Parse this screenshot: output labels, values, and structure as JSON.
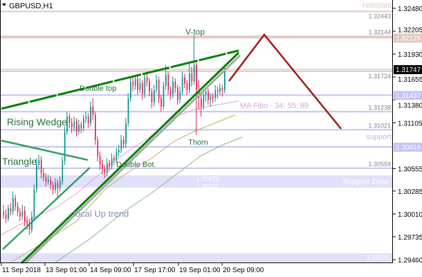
{
  "header": {
    "symbol_label": "GBPUSD,H1",
    "menu_icon": "triangle-down-icon"
  },
  "chart_data": {
    "type": "candlestick",
    "title": "GBPUSD,H1",
    "ylim": [
      1.2946,
      1.3248
    ],
    "y_ticks": [
      "1.32480",
      "1.32205",
      "1.31930",
      "1.31655",
      "1.31380",
      "1.31105",
      "1.30555",
      "1.30285",
      "1.30010",
      "1.29735",
      "1.29460"
    ],
    "x_ticks": [
      "11 Sep 2018",
      "13 Sep 01:00",
      "14 Sep 09:00",
      "17 Sep 17:00",
      "19 Sep 01:00",
      "20 Sep 09:00"
    ],
    "colors": {
      "bull": "#008c8c",
      "bear": "#e8194a",
      "level_resist": "#e0c8c0",
      "level_support": "#c4c4f4",
      "zone": "#e0e0f8",
      "trend": "#008000",
      "projection": "#a01818"
    },
    "current_price": "1.31747",
    "candles": [
      [
        1.3004,
        1.3012,
        1.2995,
        1.3
      ],
      [
        1.3,
        1.3006,
        1.299,
        1.2995
      ],
      [
        1.2995,
        1.3012,
        1.2992,
        1.3008
      ],
      [
        1.3008,
        1.3014,
        1.2999,
        1.3004
      ],
      [
        1.3004,
        1.3028,
        1.3,
        1.302
      ],
      [
        1.302,
        1.3024,
        1.3005,
        1.301
      ],
      [
        1.301,
        1.3015,
        1.2998,
        1.3003
      ],
      [
        1.3003,
        1.3008,
        1.2992,
        1.2998
      ],
      [
        1.2998,
        1.3012,
        1.2994,
        1.3005
      ],
      [
        1.3005,
        1.301,
        1.2986,
        1.2992
      ],
      [
        1.2992,
        1.2998,
        1.2982,
        1.2988
      ],
      [
        1.2988,
        1.2994,
        1.2976,
        1.2982
      ],
      [
        1.2982,
        1.3004,
        1.2978,
        1.2998
      ],
      [
        1.2998,
        1.3036,
        1.2994,
        1.303
      ],
      [
        1.303,
        1.3068,
        1.3026,
        1.306
      ],
      [
        1.306,
        1.3072,
        1.3054,
        1.3066
      ],
      [
        1.3066,
        1.307,
        1.3044,
        1.305
      ],
      [
        1.305,
        1.3056,
        1.304,
        1.3045
      ],
      [
        1.3045,
        1.305,
        1.3034,
        1.304
      ],
      [
        1.304,
        1.3048,
        1.3036,
        1.3042
      ],
      [
        1.3042,
        1.3046,
        1.303,
        1.3036
      ],
      [
        1.3036,
        1.304,
        1.3024,
        1.303
      ],
      [
        1.303,
        1.3044,
        1.3026,
        1.3038
      ],
      [
        1.3038,
        1.3042,
        1.302,
        1.3032
      ],
      [
        1.3032,
        1.3046,
        1.3028,
        1.304
      ],
      [
        1.304,
        1.307,
        1.3036,
        1.3065
      ],
      [
        1.3065,
        1.3106,
        1.306,
        1.31
      ],
      [
        1.31,
        1.3124,
        1.3096,
        1.3118
      ],
      [
        1.3118,
        1.3122,
        1.3104,
        1.311
      ],
      [
        1.311,
        1.3116,
        1.3098,
        1.3105
      ],
      [
        1.3105,
        1.3118,
        1.31,
        1.3112
      ],
      [
        1.3112,
        1.3116,
        1.3094,
        1.31
      ],
      [
        1.31,
        1.3114,
        1.3096,
        1.3108
      ],
      [
        1.3108,
        1.3112,
        1.3098,
        1.3104
      ],
      [
        1.3104,
        1.312,
        1.31,
        1.3115
      ],
      [
        1.3115,
        1.3124,
        1.311,
        1.3118
      ],
      [
        1.3118,
        1.3122,
        1.3104,
        1.311
      ],
      [
        1.311,
        1.3136,
        1.3106,
        1.313
      ],
      [
        1.313,
        1.314,
        1.3114,
        1.312
      ],
      [
        1.312,
        1.3124,
        1.3084,
        1.309
      ],
      [
        1.309,
        1.3094,
        1.3064,
        1.307
      ],
      [
        1.307,
        1.3076,
        1.3054,
        1.306
      ],
      [
        1.306,
        1.3066,
        1.3048,
        1.3055
      ],
      [
        1.3055,
        1.306,
        1.3044,
        1.305
      ],
      [
        1.305,
        1.3068,
        1.3046,
        1.3062
      ],
      [
        1.3062,
        1.3066,
        1.3052,
        1.3058
      ],
      [
        1.3058,
        1.3074,
        1.3054,
        1.3068
      ],
      [
        1.3068,
        1.3072,
        1.306,
        1.3066
      ],
      [
        1.3066,
        1.308,
        1.3062,
        1.3075
      ],
      [
        1.3075,
        1.3084,
        1.307,
        1.3078
      ],
      [
        1.3078,
        1.3096,
        1.3074,
        1.309
      ],
      [
        1.309,
        1.3094,
        1.308,
        1.3085
      ],
      [
        1.3085,
        1.3116,
        1.308,
        1.311
      ],
      [
        1.311,
        1.3146,
        1.3106,
        1.314
      ],
      [
        1.314,
        1.3166,
        1.3136,
        1.316
      ],
      [
        1.316,
        1.3166,
        1.3148,
        1.3155
      ],
      [
        1.3155,
        1.3168,
        1.315,
        1.3163
      ],
      [
        1.3163,
        1.3167,
        1.3144,
        1.315
      ],
      [
        1.315,
        1.3164,
        1.3146,
        1.3158
      ],
      [
        1.3158,
        1.3162,
        1.3138,
        1.3145
      ],
      [
        1.3145,
        1.317,
        1.314,
        1.3165
      ],
      [
        1.3165,
        1.3169,
        1.3154,
        1.316
      ],
      [
        1.316,
        1.3164,
        1.3142,
        1.3148
      ],
      [
        1.3148,
        1.3152,
        1.3128,
        1.3135
      ],
      [
        1.3135,
        1.3156,
        1.313,
        1.315
      ],
      [
        1.315,
        1.3168,
        1.3146,
        1.3162
      ],
      [
        1.3162,
        1.3166,
        1.3134,
        1.314
      ],
      [
        1.314,
        1.3144,
        1.3124,
        1.313
      ],
      [
        1.313,
        1.316,
        1.3126,
        1.3155
      ],
      [
        1.3155,
        1.318,
        1.315,
        1.3168
      ],
      [
        1.3168,
        1.3172,
        1.3144,
        1.315
      ],
      [
        1.315,
        1.3154,
        1.3138,
        1.3145
      ],
      [
        1.3145,
        1.3166,
        1.314,
        1.316
      ],
      [
        1.316,
        1.3164,
        1.3146,
        1.3152
      ],
      [
        1.3152,
        1.3156,
        1.3132,
        1.3138
      ],
      [
        1.3138,
        1.3154,
        1.3134,
        1.3148
      ],
      [
        1.3148,
        1.3172,
        1.3144,
        1.3165
      ],
      [
        1.3165,
        1.3169,
        1.3152,
        1.3158
      ],
      [
        1.3158,
        1.3162,
        1.3144,
        1.315
      ],
      [
        1.315,
        1.3184,
        1.3146,
        1.317
      ],
      [
        1.317,
        1.3178,
        1.3154,
        1.316
      ],
      [
        1.316,
        1.3216,
        1.3156,
        1.318
      ],
      [
        1.318,
        1.3184,
        1.3096,
        1.315
      ],
      [
        1.315,
        1.3162,
        1.3126,
        1.314
      ],
      [
        1.314,
        1.3146,
        1.3118,
        1.313
      ],
      [
        1.313,
        1.315,
        1.3126,
        1.3145
      ],
      [
        1.3145,
        1.3152,
        1.3136,
        1.3148
      ],
      [
        1.3148,
        1.3152,
        1.3132,
        1.3138
      ],
      [
        1.3138,
        1.3146,
        1.313,
        1.3142
      ],
      [
        1.3142,
        1.3146,
        1.3134,
        1.314
      ],
      [
        1.314,
        1.3156,
        1.3136,
        1.315
      ],
      [
        1.315,
        1.3154,
        1.314,
        1.3148
      ],
      [
        1.3148,
        1.3158,
        1.3144,
        1.3152
      ],
      [
        1.3152,
        1.3156,
        1.3142,
        1.315
      ],
      [
        1.315,
        1.318,
        1.3146,
        1.31747
      ]
    ],
    "levels": [
      {
        "price": 1.32443,
        "label": "1.32443",
        "kind": "resist"
      },
      {
        "price": 1.32144,
        "label": "1.32144",
        "kind": "resist"
      },
      {
        "price": 1.32126,
        "label": "",
        "kind": "resist"
      },
      {
        "price": 1.31724,
        "label": "1.31724",
        "kind": "resist"
      },
      {
        "price": 1.31437,
        "label": "",
        "kind": "support"
      },
      {
        "price": 1.31238,
        "label": "1.31238",
        "kind": "support"
      },
      {
        "price": 1.31021,
        "label": "1.31021",
        "kind": "support"
      },
      {
        "price": 1.30816,
        "label": "",
        "kind": "support"
      },
      {
        "price": 1.30559,
        "label": "1.30559",
        "kind": "support"
      }
    ],
    "price_tags": [
      {
        "price": 1.32126,
        "label": "1.32126",
        "kind": "resist"
      },
      {
        "price": 1.31747,
        "label": "1.31747",
        "kind": "current"
      },
      {
        "price": 1.31437,
        "label": "1.31437",
        "kind": "support"
      },
      {
        "price": 1.30816,
        "label": "1.30816",
        "kind": "support"
      }
    ],
    "zones": [
      {
        "top": 1.30472,
        "bottom": 1.30326,
        "label": "Support Zone",
        "top_label": "1.30472",
        "bottom_label": "1.30326"
      },
      {
        "top": 1.29538,
        "bottom": 1.2946,
        "label": "",
        "top_label": "1.29538",
        "bottom_label": ""
      }
    ],
    "annotations": {
      "resistant": "resistant",
      "support": "support",
      "v_top": "V-top",
      "double_top": "Double top",
      "rising_wedge": "Rising Wedge",
      "triangle": "Triangle",
      "double_bot": "Double Bot.",
      "thorn": "Thorn",
      "local_up_trend": "local Up trend",
      "ma_fibo": "MA Fibo - 34; 55; 89"
    }
  }
}
